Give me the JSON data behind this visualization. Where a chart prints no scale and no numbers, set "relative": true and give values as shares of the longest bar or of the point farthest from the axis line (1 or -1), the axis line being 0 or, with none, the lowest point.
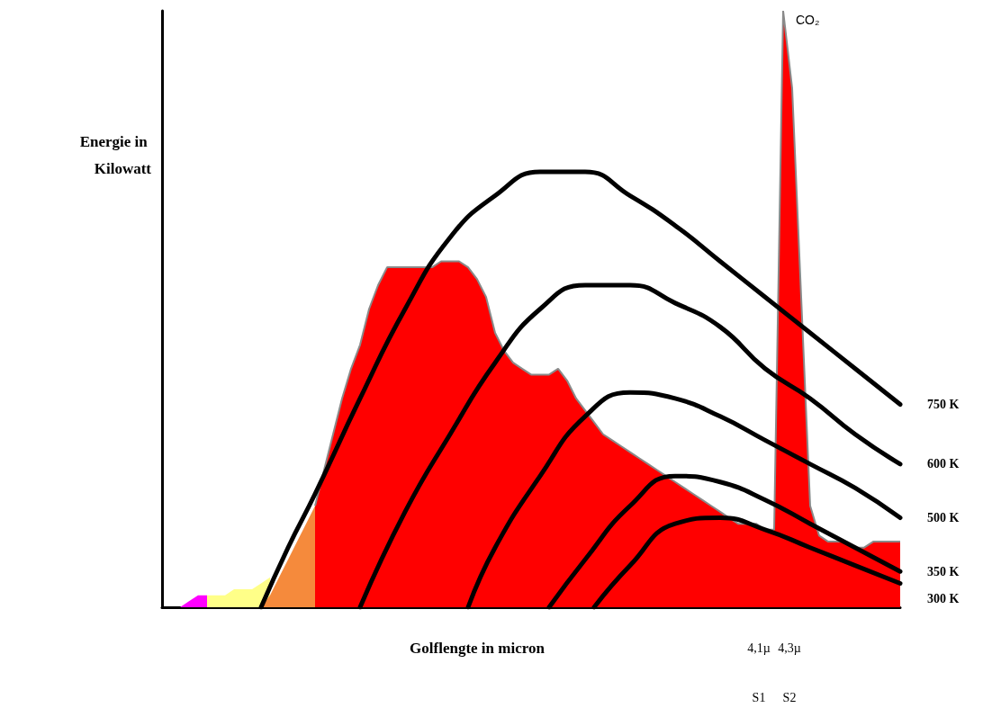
{
  "chart_data": {
    "type": "line",
    "relative": true,
    "marker": "none",
    "legend": false,
    "grid": false,
    "xlabel": "Golflengte in micron",
    "ylabel": "Energie in Kilowatt",
    "annotations": [
      "CO₂",
      "4,1µ",
      "4,3µ",
      "S1",
      "S2"
    ],
    "categories": [
      null,
      null,
      null,
      null,
      null,
      null,
      null,
      null,
      null,
      null,
      null,
      null,
      null,
      null,
      null,
      null,
      null,
      null,
      null,
      null,
      null,
      null,
      null,
      null,
      null,
      null,
      null,
      null,
      null,
      null,
      null,
      null,
      null,
      null,
      null,
      null,
      null,
      null,
      null,
      null,
      null,
      null,
      null,
      null,
      null,
      null,
      null,
      null,
      null,
      null,
      null,
      null,
      null,
      null,
      null,
      null,
      null,
      null,
      null,
      null,
      null,
      null,
      null,
      null,
      null,
      null,
      null,
      null,
      null,
      null,
      null,
      null,
      null,
      null,
      null,
      null,
      null,
      null,
      null,
      null,
      null,
      null,
      null
    ],
    "series": [
      {
        "type": "area",
        "color": "#ff00ff",
        "values": [
          null,
          null,
          0,
          0.01,
          0.02,
          0.02,
          null,
          null,
          null,
          null,
          null,
          null,
          null,
          null,
          null,
          null,
          null,
          null,
          null,
          null,
          null,
          null,
          null,
          null,
          null,
          null,
          null,
          null,
          null,
          null,
          null,
          null,
          null,
          null,
          null,
          null,
          null,
          null,
          null,
          null,
          null,
          null,
          null,
          null,
          null,
          null,
          null,
          null,
          null,
          null,
          null,
          null,
          null,
          null,
          null,
          null,
          null,
          null,
          null,
          null,
          null,
          null,
          null,
          null,
          null,
          null,
          null,
          null,
          null,
          null,
          null,
          null,
          null,
          null,
          null,
          null,
          null,
          null,
          null,
          null,
          null,
          null,
          null
        ]
      },
      {
        "type": "area",
        "color": "#ffff88",
        "values": [
          null,
          null,
          null,
          null,
          null,
          0.02,
          0.02,
          0.02,
          0.03,
          0.03,
          0.03,
          0.04,
          0.05,
          null,
          null,
          null,
          null,
          null,
          null,
          null,
          null,
          null,
          null,
          null,
          null,
          null,
          null,
          null,
          null,
          null,
          null,
          null,
          null,
          null,
          null,
          null,
          null,
          null,
          null,
          null,
          null,
          null,
          null,
          null,
          null,
          null,
          null,
          null,
          null,
          null,
          null,
          null,
          null,
          null,
          null,
          null,
          null,
          null,
          null,
          null,
          null,
          null,
          null,
          null,
          null,
          null,
          null,
          null,
          null,
          null,
          null,
          null,
          null,
          null,
          null,
          null,
          null,
          null,
          null,
          null,
          null,
          null,
          null
        ]
      },
      {
        "type": "area",
        "color": "#f58a3c",
        "values": [
          null,
          null,
          null,
          null,
          null,
          null,
          null,
          null,
          null,
          null,
          null,
          0,
          0.02,
          0.05,
          0.08,
          0.11,
          0.14,
          0.17,
          null,
          null,
          null,
          null,
          null,
          null,
          null,
          null,
          null,
          null,
          null,
          null,
          null,
          null,
          null,
          null,
          null,
          null,
          null,
          null,
          null,
          null,
          null,
          null,
          null,
          null,
          null,
          null,
          null,
          null,
          null,
          null,
          null,
          null,
          null,
          null,
          null,
          null,
          null,
          null,
          null,
          null,
          null,
          null,
          null,
          null,
          null,
          null,
          null,
          null,
          null,
          null,
          null,
          null,
          null,
          null,
          null,
          null,
          null,
          null,
          null,
          null,
          null,
          null,
          null
        ]
      },
      {
        "type": "area",
        "color": "#ff0000",
        "values": [
          null,
          null,
          null,
          null,
          null,
          null,
          null,
          null,
          null,
          null,
          null,
          null,
          null,
          null,
          null,
          null,
          null,
          0.17,
          0.23,
          0.29,
          0.35,
          0.4,
          0.44,
          0.5,
          0.54,
          0.57,
          0.57,
          0.57,
          0.57,
          0.57,
          0.57,
          0.58,
          0.58,
          0.58,
          0.57,
          0.55,
          0.52,
          0.46,
          0.43,
          0.41,
          0.4,
          0.39,
          0.39,
          0.39,
          0.4,
          0.38,
          0.35,
          0.33,
          0.31,
          0.29,
          0.28,
          0.27,
          0.26,
          0.25,
          0.24,
          0.23,
          0.22,
          0.21,
          0.2,
          0.19,
          0.18,
          0.17,
          0.16,
          0.15,
          0.14,
          0.14,
          0.14,
          0.13,
          0.13,
          1.0,
          0.87,
          0.52,
          0.17,
          0.12,
          0.11,
          0.11,
          0.11,
          0.1,
          0.1,
          0.11,
          0.11,
          0.11,
          0.11
        ]
      },
      {
        "name": "750 K",
        "color": "#000000",
        "values": [
          null,
          null,
          null,
          null,
          null,
          null,
          null,
          null,
          null,
          null,
          null,
          0,
          null,
          null,
          0.1,
          null,
          null,
          0.19,
          null,
          null,
          null,
          null,
          0.35,
          null,
          null,
          null,
          null,
          0.5,
          null,
          null,
          null,
          null,
          0.62,
          null,
          null,
          null,
          null,
          0.69,
          null,
          null,
          null,
          null,
          0.73,
          null,
          0.73,
          null,
          null,
          0.73,
          null,
          null,
          null,
          null,
          0.69,
          null,
          null,
          null,
          null,
          0.64,
          null,
          null,
          null,
          null,
          0.58,
          null,
          null,
          null,
          null,
          0.52,
          null,
          null,
          null,
          null,
          0.46,
          null,
          null,
          null,
          null,
          0.4,
          null,
          null,
          null,
          null,
          0.34
        ]
      },
      {
        "name": "600 K",
        "color": "#000000",
        "values": [
          null,
          null,
          null,
          null,
          null,
          null,
          null,
          null,
          null,
          null,
          null,
          null,
          null,
          null,
          null,
          null,
          null,
          null,
          null,
          null,
          null,
          null,
          0,
          null,
          null,
          null,
          null,
          0.16,
          null,
          null,
          null,
          null,
          0.29,
          null,
          null,
          null,
          null,
          0.41,
          null,
          null,
          null,
          null,
          0.5,
          null,
          null,
          null,
          null,
          0.54,
          null,
          null,
          null,
          null,
          0.54,
          null,
          null,
          null,
          null,
          0.51,
          null,
          null,
          null,
          null,
          0.47,
          null,
          null,
          null,
          null,
          0.4,
          null,
          null,
          null,
          null,
          0.35,
          null,
          null,
          null,
          null,
          0.29,
          null,
          null,
          null,
          null,
          0.24
        ]
      },
      {
        "name": "500 K",
        "color": "#000000",
        "values": [
          null,
          null,
          null,
          null,
          null,
          null,
          null,
          null,
          null,
          null,
          null,
          null,
          null,
          null,
          null,
          null,
          null,
          null,
          null,
          null,
          null,
          null,
          null,
          null,
          null,
          null,
          null,
          null,
          null,
          null,
          null,
          null,
          null,
          null,
          0,
          null,
          null,
          0.1,
          null,
          null,
          null,
          null,
          0.22,
          null,
          null,
          null,
          null,
          0.32,
          null,
          null,
          null,
          null,
          0.36,
          null,
          null,
          null,
          null,
          0.35,
          null,
          null,
          null,
          null,
          0.32,
          null,
          null,
          null,
          null,
          0.28,
          null,
          null,
          null,
          null,
          0.24,
          null,
          null,
          null,
          null,
          0.2,
          null,
          null,
          null,
          null,
          0.15
        ]
      },
      {
        "name": "350 K",
        "color": "#000000",
        "values": [
          null,
          null,
          null,
          null,
          null,
          null,
          null,
          null,
          null,
          null,
          null,
          null,
          null,
          null,
          null,
          null,
          null,
          null,
          null,
          null,
          null,
          null,
          null,
          null,
          null,
          null,
          null,
          null,
          null,
          null,
          null,
          null,
          null,
          null,
          null,
          null,
          null,
          null,
          null,
          null,
          null,
          null,
          null,
          0,
          null,
          null,
          null,
          0.08,
          null,
          null,
          null,
          null,
          0.17,
          null,
          null,
          null,
          null,
          0.22,
          null,
          null,
          null,
          null,
          0.21,
          null,
          null,
          null,
          null,
          0.18,
          null,
          null,
          null,
          null,
          0.14,
          null,
          null,
          null,
          null,
          0.1,
          null,
          null,
          null,
          null,
          0.06
        ]
      },
      {
        "name": "300 K",
        "color": "#000000",
        "values": [
          null,
          null,
          null,
          null,
          null,
          null,
          null,
          null,
          null,
          null,
          null,
          null,
          null,
          null,
          null,
          null,
          null,
          null,
          null,
          null,
          null,
          null,
          null,
          null,
          null,
          null,
          null,
          null,
          null,
          null,
          null,
          null,
          null,
          null,
          null,
          null,
          null,
          null,
          null,
          null,
          null,
          null,
          null,
          null,
          null,
          null,
          null,
          null,
          0,
          null,
          null,
          null,
          0.07,
          null,
          null,
          null,
          null,
          0.14,
          null,
          null,
          null,
          null,
          0.15,
          null,
          null,
          null,
          null,
          0.13,
          null,
          null,
          null,
          null,
          0.1,
          null,
          null,
          null,
          null,
          0.07,
          null,
          null,
          null,
          null,
          0.04
        ]
      }
    ]
  }
}
